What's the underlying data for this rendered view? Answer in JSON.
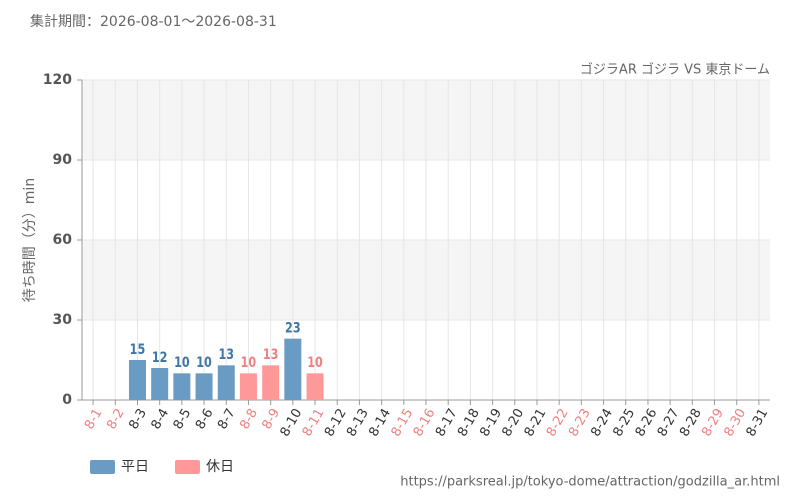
{
  "chart_data": {
    "type": "bar",
    "title": "集計期間：2026-08-01～2026-08-31",
    "subtitle": "ゴジラAR ゴジラ VS 東京ドーム",
    "y_label": "待ち時間（分）min",
    "source": "https://parksreal.jp/tokyo-dome/attraction/godzilla_ar.html",
    "categories": [
      "8-1",
      "8-2",
      "8-3",
      "8-4",
      "8-5",
      "8-6",
      "8-7",
      "8-8",
      "8-9",
      "8-10",
      "8-11",
      "8-12",
      "8-13",
      "8-14",
      "8-15",
      "8-16",
      "8-17",
      "8-18",
      "8-19",
      "8-20",
      "8-21",
      "8-22",
      "8-23",
      "8-24",
      "8-25",
      "8-26",
      "8-27",
      "8-28",
      "8-29",
      "8-30",
      "8-31"
    ],
    "category_colors": [
      "#f08080",
      "#f08080",
      "#333333",
      "#333333",
      "#333333",
      "#333333",
      "#333333",
      "#f08080",
      "#f08080",
      "#333333",
      "#f08080",
      "#333333",
      "#333333",
      "#333333",
      "#f08080",
      "#f08080",
      "#333333",
      "#333333",
      "#333333",
      "#333333",
      "#333333",
      "#f08080",
      "#f08080",
      "#333333",
      "#333333",
      "#333333",
      "#333333",
      "#333333",
      "#f08080",
      "#f08080",
      "#333333"
    ],
    "series": [
      {
        "name": "平日",
        "color": "#6a9bc3",
        "label_color": "#3f76a6",
        "values": [
          null,
          null,
          15,
          12,
          10,
          10,
          13,
          null,
          null,
          23,
          null,
          null,
          null,
          null,
          null,
          null,
          null,
          null,
          null,
          null,
          null,
          null,
          null,
          null,
          null,
          null,
          null,
          null,
          null,
          null,
          null
        ]
      },
      {
        "name": "休日",
        "color": "#ff9999",
        "label_color": "#f08080",
        "values": [
          null,
          null,
          null,
          null,
          null,
          null,
          null,
          10,
          13,
          null,
          10,
          null,
          null,
          null,
          null,
          null,
          null,
          null,
          null,
          null,
          null,
          null,
          null,
          null,
          null,
          null,
          null,
          null,
          null,
          null,
          null
        ]
      }
    ],
    "ylim": [
      0,
      120
    ],
    "yticks": [
      0,
      30,
      60,
      90,
      120
    ],
    "grid": true,
    "band_color": "#f5f5f5"
  }
}
